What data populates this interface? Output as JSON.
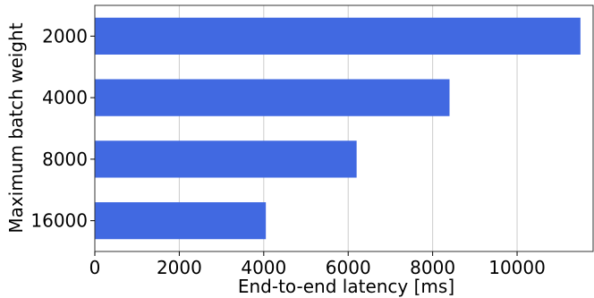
{
  "chart_data": {
    "type": "bar",
    "orientation": "horizontal",
    "categories": [
      "2000",
      "4000",
      "8000",
      "16000"
    ],
    "values": [
      11500,
      8400,
      6200,
      4050
    ],
    "xlabel": "End-to-end latency [ms]",
    "ylabel": "Maximum batch weight",
    "xlim": [
      0,
      11800
    ],
    "xticks": [
      0,
      2000,
      4000,
      6000,
      8000,
      10000
    ],
    "xtick_labels": [
      "0",
      "2000",
      "4000",
      "6000",
      "8000",
      "10000"
    ],
    "grid": "vertical",
    "bar_color": "#4169E1",
    "legend": "none"
  }
}
